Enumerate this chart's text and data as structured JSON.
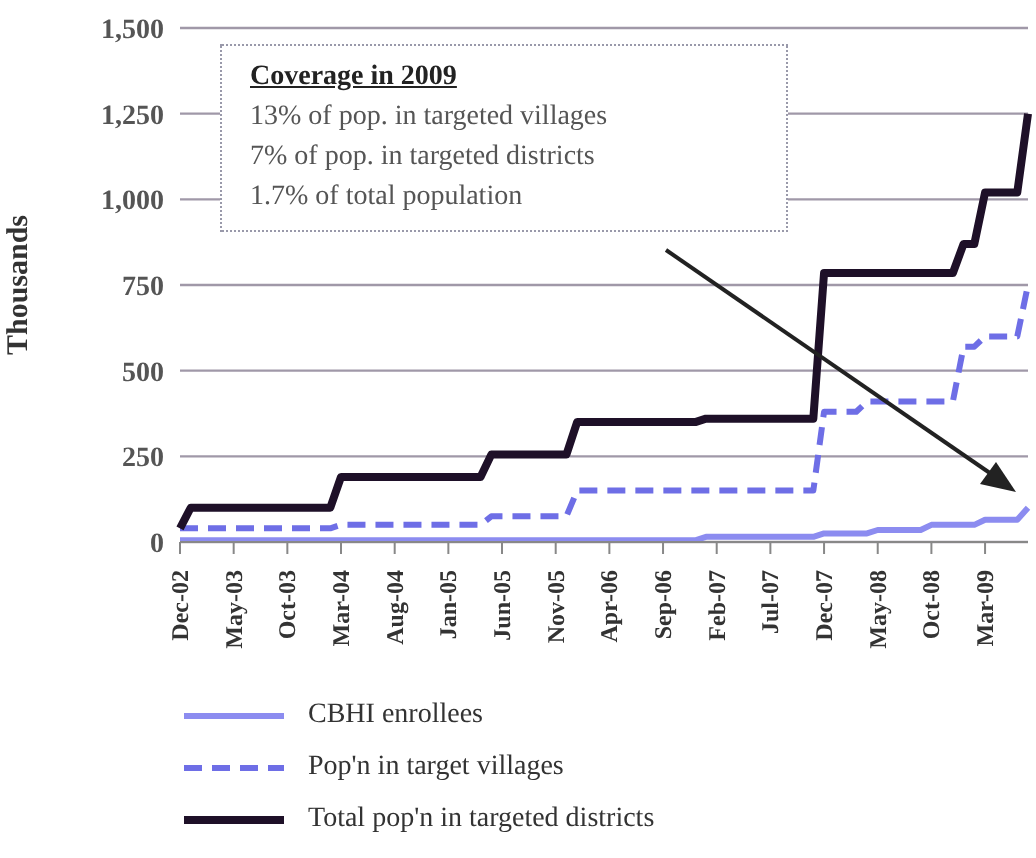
{
  "chart_data": {
    "type": "line",
    "ylabel": "Thousands",
    "ylim": [
      0,
      1500
    ],
    "yticks": [
      {
        "value": 0,
        "label": "0"
      },
      {
        "value": 250,
        "label": "250"
      },
      {
        "value": 500,
        "label": "500"
      },
      {
        "value": 750,
        "label": "750"
      },
      {
        "value": 1000,
        "label": "1,000"
      },
      {
        "value": 1250,
        "label": "1,250"
      },
      {
        "value": 1500,
        "label": "1,500"
      }
    ],
    "grid": "y",
    "legend": "bottom",
    "categories": [
      "Dec-02",
      null,
      null,
      null,
      null,
      "May-03",
      null,
      null,
      null,
      null,
      "Oct-03",
      null,
      null,
      null,
      null,
      "Mar-04",
      null,
      null,
      null,
      null,
      "Aug-04",
      null,
      null,
      null,
      null,
      "Jan-05",
      null,
      null,
      null,
      null,
      "Jun-05",
      null,
      null,
      null,
      null,
      "Nov-05",
      null,
      null,
      null,
      null,
      "Apr-06",
      null,
      null,
      null,
      null,
      "Sep-06",
      null,
      null,
      null,
      null,
      "Feb-07",
      null,
      null,
      null,
      null,
      "Jul-07",
      null,
      null,
      null,
      null,
      "Dec-07",
      null,
      null,
      null,
      null,
      "May-08",
      null,
      null,
      null,
      null,
      "Oct-08",
      null,
      null,
      null,
      null,
      "Mar-09",
      null,
      null,
      null,
      null
    ],
    "series": [
      {
        "name": "CBHI enrollees",
        "color": "#8c8cf0",
        "line_style": "solid",
        "values": [
          5,
          5,
          5,
          5,
          5,
          5,
          5,
          5,
          5,
          5,
          5,
          5,
          5,
          5,
          5,
          5,
          5,
          5,
          5,
          5,
          5,
          5,
          5,
          5,
          5,
          5,
          5,
          5,
          5,
          5,
          5,
          5,
          5,
          5,
          5,
          5,
          5,
          5,
          5,
          5,
          5,
          5,
          5,
          5,
          5,
          5,
          5,
          5,
          5,
          15,
          15,
          15,
          15,
          15,
          15,
          15,
          15,
          15,
          15,
          15,
          25,
          25,
          25,
          25,
          25,
          35,
          35,
          35,
          35,
          35,
          50,
          50,
          50,
          50,
          50,
          65,
          65,
          65,
          65,
          100
        ]
      },
      {
        "name": "Pop'n in target villages",
        "color": "#6e6ee6",
        "line_style": "dashed",
        "values": [
          40,
          40,
          40,
          40,
          40,
          40,
          40,
          40,
          40,
          40,
          40,
          40,
          40,
          40,
          40,
          50,
          50,
          50,
          50,
          50,
          50,
          50,
          50,
          50,
          50,
          50,
          50,
          50,
          50,
          75,
          75,
          75,
          75,
          75,
          75,
          75,
          75,
          150,
          150,
          150,
          150,
          150,
          150,
          150,
          150,
          150,
          150,
          150,
          150,
          150,
          150,
          150,
          150,
          150,
          150,
          150,
          150,
          150,
          150,
          150,
          380,
          380,
          380,
          380,
          410,
          410,
          410,
          410,
          410,
          410,
          410,
          410,
          410,
          570,
          570,
          600,
          600,
          600,
          600,
          750
        ]
      },
      {
        "name": "Total pop'n in targeted districts",
        "color": "#1e1028",
        "line_style": "solid",
        "values": [
          40,
          100,
          100,
          100,
          100,
          100,
          100,
          100,
          100,
          100,
          100,
          100,
          100,
          100,
          100,
          190,
          190,
          190,
          190,
          190,
          190,
          190,
          190,
          190,
          190,
          190,
          190,
          190,
          190,
          255,
          255,
          255,
          255,
          255,
          255,
          255,
          255,
          350,
          350,
          350,
          350,
          350,
          350,
          350,
          350,
          350,
          350,
          350,
          350,
          360,
          360,
          360,
          360,
          360,
          360,
          360,
          360,
          360,
          360,
          360,
          785,
          785,
          785,
          785,
          785,
          785,
          785,
          785,
          785,
          785,
          785,
          785,
          785,
          870,
          870,
          1020,
          1020,
          1020,
          1020,
          1250
        ]
      }
    ],
    "annotations": [
      "Coverage in 2009",
      "13% of pop. in targeted villages",
      "7% of pop. in targeted districts",
      "1.7% of total population"
    ]
  }
}
